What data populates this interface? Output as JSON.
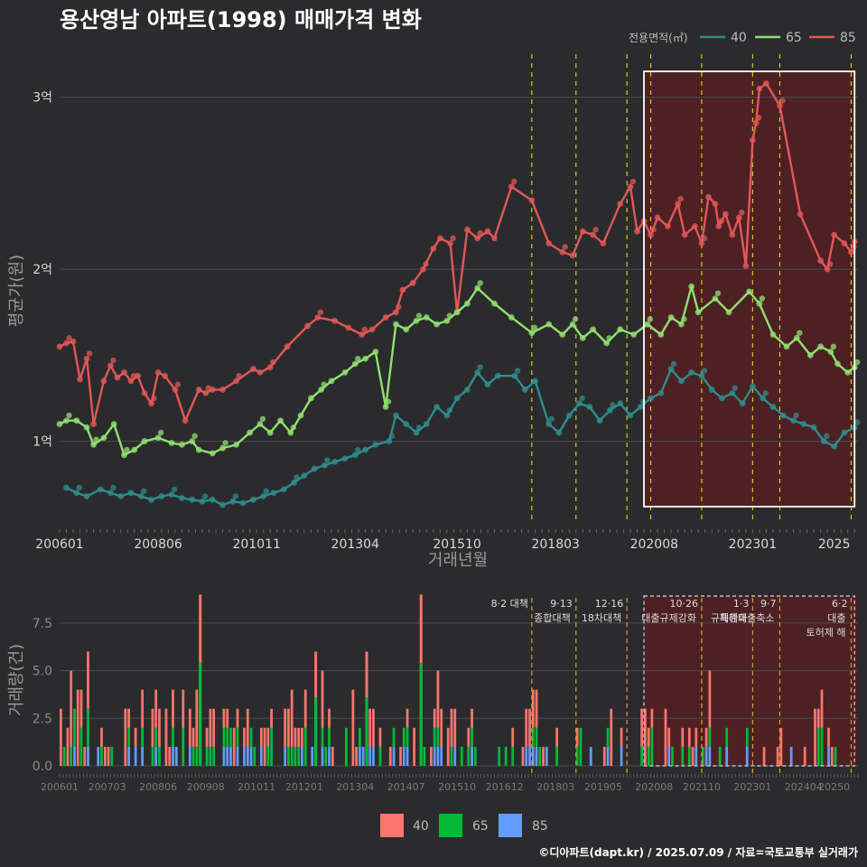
{
  "title": "용산영남 아파트(1998) 매매가격 변화",
  "caption": "©디아파트(dapt.kr) / 2025.07.09 / 자료=국토교통부 실거래가",
  "legend_title": "전용면적(㎡)",
  "colors": {
    "40": "#2f8c8c",
    "65": "#90e070",
    "85": "#e05858",
    "bar40": "#f8766d",
    "bar65": "#00ba38",
    "bar85": "#619cff",
    "vline": "#d9c91a",
    "shade": "#5a1e22"
  },
  "chart_data": [
    {
      "type": "line",
      "xlabel": "거래년월",
      "ylabel": "평균가(원)",
      "x_ticks": [
        "200601",
        "200806",
        "201011",
        "201304",
        "201510",
        "201803",
        "202008",
        "202301",
        "2025"
      ],
      "y_ticks": [
        "1억",
        "2억",
        "3억"
      ],
      "ylim": [
        0.52,
        3.25
      ],
      "xlim": [
        "2006-01",
        "2025-08"
      ],
      "grid": true,
      "legend_placement": "top-right",
      "highlight_box": {
        "from": "2020-05",
        "to": "2025-07"
      },
      "vlines": [
        "2017-08",
        "2018-09",
        "2019-12",
        "2020-07",
        "2021-10",
        "2023-01",
        "2023-09",
        "2025-06"
      ],
      "series": [
        {
          "name": "85",
          "points": [
            [
              "2006-01",
              1.55
            ],
            [
              "2006-03",
              1.57
            ],
            [
              "2006-05",
              1.58
            ],
            [
              "2006-07",
              1.36
            ],
            [
              "2006-09",
              1.48
            ],
            [
              "2006-11",
              1.1
            ],
            [
              "2007-02",
              1.35
            ],
            [
              "2007-04",
              1.44
            ],
            [
              "2007-06",
              1.37
            ],
            [
              "2007-08",
              1.4
            ],
            [
              "2007-10",
              1.35
            ],
            [
              "2007-12",
              1.38
            ],
            [
              "2008-02",
              1.28
            ],
            [
              "2008-04",
              1.22
            ],
            [
              "2008-06",
              1.4
            ],
            [
              "2008-08",
              1.38
            ],
            [
              "2008-11",
              1.3
            ],
            [
              "2009-02",
              1.12
            ],
            [
              "2009-06",
              1.3
            ],
            [
              "2009-08",
              1.28
            ],
            [
              "2009-10",
              1.3
            ],
            [
              "2010-01",
              1.3
            ],
            [
              "2010-05",
              1.35
            ],
            [
              "2010-10",
              1.42
            ],
            [
              "2010-12",
              1.4
            ],
            [
              "2011-03",
              1.43
            ],
            [
              "2011-08",
              1.55
            ],
            [
              "2012-02",
              1.67
            ],
            [
              "2012-05",
              1.72
            ],
            [
              "2012-10",
              1.7
            ],
            [
              "2013-02",
              1.66
            ],
            [
              "2013-06",
              1.62
            ],
            [
              "2013-09",
              1.65
            ],
            [
              "2014-01",
              1.72
            ],
            [
              "2014-04",
              1.75
            ],
            [
              "2014-06",
              1.88
            ],
            [
              "2014-09",
              1.92
            ],
            [
              "2014-12",
              2.0
            ],
            [
              "2015-03",
              2.12
            ],
            [
              "2015-05",
              2.18
            ],
            [
              "2015-08",
              2.15
            ],
            [
              "2015-10",
              1.75
            ],
            [
              "2016-01",
              2.23
            ],
            [
              "2016-04",
              2.18
            ],
            [
              "2016-07",
              2.22
            ],
            [
              "2016-09",
              2.18
            ],
            [
              "2017-02",
              2.48
            ],
            [
              "2017-08",
              2.4
            ],
            [
              "2018-01",
              2.15
            ],
            [
              "2018-05",
              2.1
            ],
            [
              "2018-08",
              2.08
            ],
            [
              "2018-11",
              2.22
            ],
            [
              "2019-02",
              2.2
            ],
            [
              "2019-05",
              2.15
            ],
            [
              "2019-10",
              2.38
            ],
            [
              "2020-01",
              2.48
            ],
            [
              "2020-03",
              2.22
            ],
            [
              "2020-05",
              2.28
            ],
            [
              "2020-07",
              2.2
            ],
            [
              "2020-09",
              2.3
            ],
            [
              "2020-12",
              2.25
            ],
            [
              "2021-03",
              2.38
            ],
            [
              "2021-05",
              2.2
            ],
            [
              "2021-08",
              2.25
            ],
            [
              "2021-10",
              2.15
            ],
            [
              "2021-12",
              2.42
            ],
            [
              "2022-02",
              2.38
            ],
            [
              "2022-03",
              2.25
            ],
            [
              "2022-05",
              2.32
            ],
            [
              "2022-07",
              2.2
            ],
            [
              "2022-09",
              2.3
            ],
            [
              "2022-11",
              2.02
            ],
            [
              "2023-01",
              2.75
            ],
            [
              "2023-02",
              2.85
            ],
            [
              "2023-03",
              3.05
            ],
            [
              "2023-05",
              3.08
            ],
            [
              "2023-09",
              2.95
            ],
            [
              "2024-03",
              2.32
            ],
            [
              "2024-09",
              2.05
            ],
            [
              "2024-11",
              2.0
            ],
            [
              "2025-01",
              2.2
            ],
            [
              "2025-04",
              2.15
            ],
            [
              "2025-06",
              2.1
            ],
            [
              "2025-07",
              2.16
            ]
          ]
        },
        {
          "name": "65",
          "points": [
            [
              "2006-01",
              1.1
            ],
            [
              "2006-03",
              1.12
            ],
            [
              "2006-06",
              1.12
            ],
            [
              "2006-09",
              1.08
            ],
            [
              "2006-11",
              0.98
            ],
            [
              "2007-02",
              1.02
            ],
            [
              "2007-05",
              1.1
            ],
            [
              "2007-08",
              0.92
            ],
            [
              "2007-11",
              0.95
            ],
            [
              "2008-02",
              1.0
            ],
            [
              "2008-06",
              1.02
            ],
            [
              "2008-10",
              0.99
            ],
            [
              "2009-01",
              0.98
            ],
            [
              "2009-04",
              1.0
            ],
            [
              "2009-06",
              0.95
            ],
            [
              "2009-10",
              0.93
            ],
            [
              "2010-01",
              0.96
            ],
            [
              "2010-05",
              0.98
            ],
            [
              "2010-09",
              1.05
            ],
            [
              "2010-12",
              1.1
            ],
            [
              "2011-03",
              1.05
            ],
            [
              "2011-06",
              1.12
            ],
            [
              "2011-09",
              1.05
            ],
            [
              "2011-12",
              1.15
            ],
            [
              "2012-03",
              1.25
            ],
            [
              "2012-06",
              1.3
            ],
            [
              "2012-09",
              1.35
            ],
            [
              "2013-01",
              1.4
            ],
            [
              "2013-04",
              1.45
            ],
            [
              "2013-07",
              1.48
            ],
            [
              "2013-10",
              1.52
            ],
            [
              "2014-01",
              1.2
            ],
            [
              "2014-04",
              1.68
            ],
            [
              "2014-07",
              1.65
            ],
            [
              "2014-10",
              1.7
            ],
            [
              "2015-01",
              1.72
            ],
            [
              "2015-04",
              1.68
            ],
            [
              "2015-07",
              1.7
            ],
            [
              "2015-10",
              1.75
            ],
            [
              "2016-01",
              1.8
            ],
            [
              "2016-04",
              1.89
            ],
            [
              "2016-09",
              1.8
            ],
            [
              "2017-02",
              1.72
            ],
            [
              "2017-08",
              1.63
            ],
            [
              "2018-01",
              1.68
            ],
            [
              "2018-05",
              1.62
            ],
            [
              "2018-08",
              1.68
            ],
            [
              "2018-11",
              1.6
            ],
            [
              "2019-02",
              1.65
            ],
            [
              "2019-06",
              1.57
            ],
            [
              "2019-10",
              1.65
            ],
            [
              "2020-02",
              1.62
            ],
            [
              "2020-06",
              1.68
            ],
            [
              "2020-10",
              1.62
            ],
            [
              "2021-01",
              1.72
            ],
            [
              "2021-04",
              1.68
            ],
            [
              "2021-07",
              1.9
            ],
            [
              "2021-09",
              1.75
            ],
            [
              "2022-02",
              1.83
            ],
            [
              "2022-06",
              1.75
            ],
            [
              "2022-12",
              1.87
            ],
            [
              "2023-03",
              1.8
            ],
            [
              "2023-07",
              1.62
            ],
            [
              "2023-11",
              1.55
            ],
            [
              "2024-02",
              1.6
            ],
            [
              "2024-06",
              1.5
            ],
            [
              "2024-09",
              1.55
            ],
            [
              "2024-12",
              1.52
            ],
            [
              "2025-02",
              1.45
            ],
            [
              "2025-05",
              1.4
            ],
            [
              "2025-07",
              1.43
            ]
          ]
        },
        {
          "name": "40",
          "points": [
            [
              "2006-03",
              0.73
            ],
            [
              "2006-06",
              0.7
            ],
            [
              "2006-09",
              0.68
            ],
            [
              "2007-01",
              0.72
            ],
            [
              "2007-04",
              0.7
            ],
            [
              "2007-07",
              0.68
            ],
            [
              "2007-10",
              0.7
            ],
            [
              "2008-01",
              0.68
            ],
            [
              "2008-04",
              0.66
            ],
            [
              "2008-07",
              0.68
            ],
            [
              "2008-10",
              0.69
            ],
            [
              "2009-01",
              0.67
            ],
            [
              "2009-04",
              0.66
            ],
            [
              "2009-07",
              0.65
            ],
            [
              "2009-10",
              0.66
            ],
            [
              "2010-01",
              0.63
            ],
            [
              "2010-04",
              0.65
            ],
            [
              "2010-07",
              0.64
            ],
            [
              "2010-10",
              0.66
            ],
            [
              "2011-01",
              0.68
            ],
            [
              "2011-04",
              0.7
            ],
            [
              "2011-07",
              0.72
            ],
            [
              "2011-10",
              0.76
            ],
            [
              "2012-01",
              0.8
            ],
            [
              "2012-04",
              0.84
            ],
            [
              "2012-07",
              0.86
            ],
            [
              "2012-10",
              0.88
            ],
            [
              "2013-01",
              0.9
            ],
            [
              "2013-04",
              0.92
            ],
            [
              "2013-07",
              0.95
            ],
            [
              "2013-10",
              0.98
            ],
            [
              "2014-02",
              1.0
            ],
            [
              "2014-04",
              1.15
            ],
            [
              "2014-07",
              1.1
            ],
            [
              "2014-10",
              1.05
            ],
            [
              "2015-01",
              1.1
            ],
            [
              "2015-04",
              1.2
            ],
            [
              "2015-07",
              1.15
            ],
            [
              "2015-10",
              1.25
            ],
            [
              "2016-01",
              1.3
            ],
            [
              "2016-04",
              1.4
            ],
            [
              "2016-07",
              1.33
            ],
            [
              "2016-10",
              1.38
            ],
            [
              "2017-03",
              1.38
            ],
            [
              "2017-06",
              1.3
            ],
            [
              "2017-09",
              1.35
            ],
            [
              "2018-01",
              1.1
            ],
            [
              "2018-04",
              1.05
            ],
            [
              "2018-07",
              1.15
            ],
            [
              "2018-10",
              1.22
            ],
            [
              "2019-01",
              1.2
            ],
            [
              "2019-04",
              1.12
            ],
            [
              "2019-07",
              1.18
            ],
            [
              "2019-10",
              1.22
            ],
            [
              "2020-01",
              1.15
            ],
            [
              "2020-04",
              1.2
            ],
            [
              "2020-07",
              1.25
            ],
            [
              "2020-10",
              1.28
            ],
            [
              "2021-01",
              1.42
            ],
            [
              "2021-04",
              1.35
            ],
            [
              "2021-07",
              1.4
            ],
            [
              "2021-10",
              1.38
            ],
            [
              "2022-01",
              1.3
            ],
            [
              "2022-04",
              1.25
            ],
            [
              "2022-07",
              1.28
            ],
            [
              "2022-10",
              1.22
            ],
            [
              "2023-01",
              1.32
            ],
            [
              "2023-04",
              1.25
            ],
            [
              "2023-07",
              1.2
            ],
            [
              "2023-10",
              1.15
            ],
            [
              "2024-01",
              1.12
            ],
            [
              "2024-04",
              1.1
            ],
            [
              "2024-07",
              1.08
            ],
            [
              "2024-10",
              1.0
            ],
            [
              "2025-01",
              0.97
            ],
            [
              "2025-04",
              1.05
            ],
            [
              "2025-07",
              1.08
            ]
          ]
        }
      ]
    },
    {
      "type": "bar",
      "xlabel": "",
      "ylabel": "거래량(건)",
      "x_ticks": [
        "200601",
        "200703",
        "200806",
        "200908",
        "201011",
        "201201",
        "201304",
        "201407",
        "201510",
        "201612",
        "201803",
        "201905",
        "202008",
        "202110",
        "202301",
        "202404",
        "20250"
      ],
      "y_ticks": [
        "0.0",
        "2.5",
        "5.0",
        "7.5"
      ],
      "ylim": [
        0,
        9.3
      ],
      "stacked": true,
      "legend_placement": "bottom",
      "policies": [
        {
          "date": "2017-08",
          "lines": [
            "8·2 대책"
          ]
        },
        {
          "date": "2018-09",
          "lines": [
            "9·13",
            "종합대책"
          ]
        },
        {
          "date": "2019-12",
          "lines": [
            "12·16",
            "18차대책"
          ]
        },
        {
          "date": "2021-10",
          "lines": [
            "10·26",
            "대출규제강화"
          ]
        },
        {
          "date": "2023-01",
          "lines": [
            "1·3",
            "규제완화"
          ]
        },
        {
          "date": "2023-09",
          "lines": [
            "9·7",
            "특례대출축소"
          ]
        },
        {
          "date": "2025-06",
          "lines": [
            "6·2",
            "대출",
            "토허제 해"
          ]
        }
      ],
      "series": [
        {
          "name": "40"
        },
        {
          "name": "65"
        },
        {
          "name": "85"
        }
      ]
    }
  ]
}
